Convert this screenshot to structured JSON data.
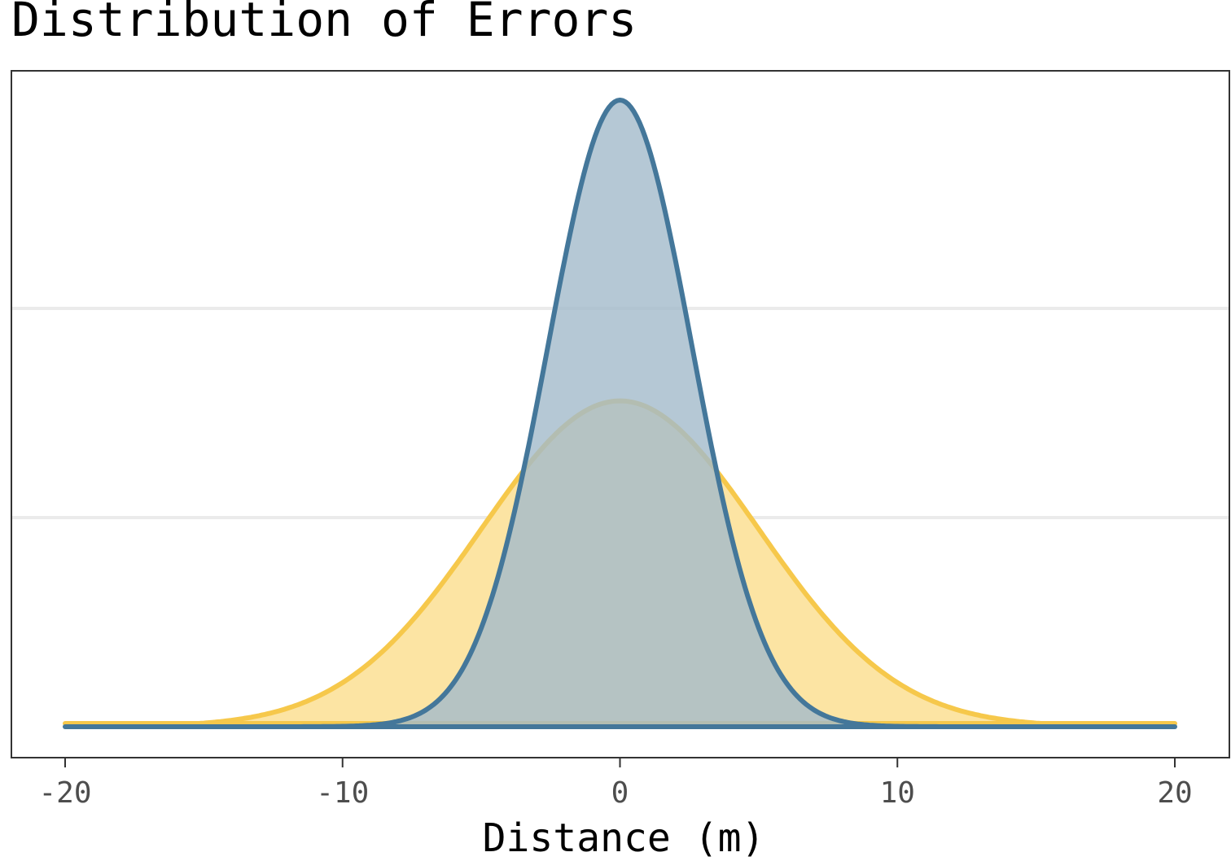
{
  "chart_data": {
    "type": "area",
    "title": "Distribution of Errors",
    "xlabel": "Distance (m)",
    "ylabel": "",
    "xlim": [
      -20,
      20
    ],
    "ylim": [
      0,
      0.14
    ],
    "x_ticks": [
      -20,
      -10,
      0,
      10,
      20
    ],
    "x_tick_labels": [
      "-20",
      "-10",
      "0",
      "10",
      "20"
    ],
    "grid": "horizontal major lines only",
    "legend": "none",
    "series": [
      {
        "distribution": "normal",
        "mean": 0,
        "sd": 5,
        "fill": "#FCE4A3",
        "line": "#F6C84B"
      },
      {
        "distribution": "normal",
        "mean": 0,
        "sd": 2.6,
        "fill": "#A3BACB",
        "line": "#44779A"
      }
    ]
  }
}
